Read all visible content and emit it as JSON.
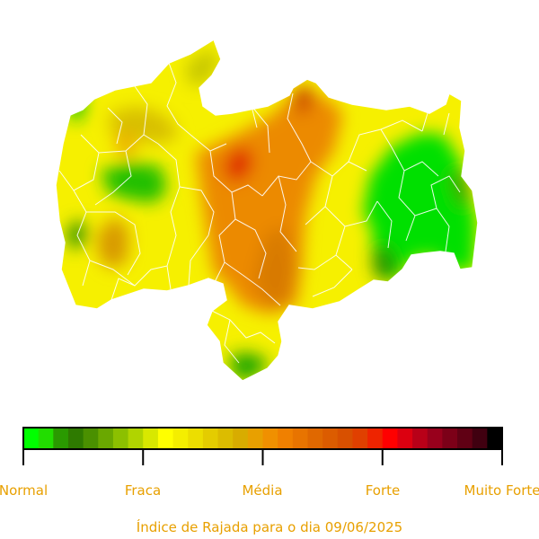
{
  "caption": "Índice de Rajada para o dia 09/06/2025",
  "legend": {
    "labels": [
      "Normal",
      "Fraca",
      "Média",
      "Forte",
      "Muito Forte"
    ],
    "colors": [
      "#00ff00",
      "#22dd00",
      "#2a9a00",
      "#2e7a00",
      "#4a9000",
      "#6aa800",
      "#8cc000",
      "#b0d400",
      "#d8e800",
      "#ffff00",
      "#f4ee00",
      "#ecde00",
      "#e4cc00",
      "#dcbc00",
      "#d8ac00",
      "#e8a000",
      "#f09000",
      "#f08000",
      "#e87400",
      "#e06800",
      "#dc5c00",
      "#d85000",
      "#e04000",
      "#ee2400",
      "#ff0000",
      "#dc0010",
      "#b80018",
      "#98001c",
      "#7c0018",
      "#600014",
      "#400010",
      "#000000"
    ]
  },
  "map": {
    "region": "Paraíba",
    "regions": [
      {
        "zone": "green",
        "color": "#00e000"
      },
      {
        "zone": "yellow",
        "color": "#f6f000"
      },
      {
        "zone": "orange",
        "color": "#ec8a00"
      },
      {
        "zone": "red",
        "color": "#e03000"
      }
    ],
    "border_color": "#ffffff"
  }
}
